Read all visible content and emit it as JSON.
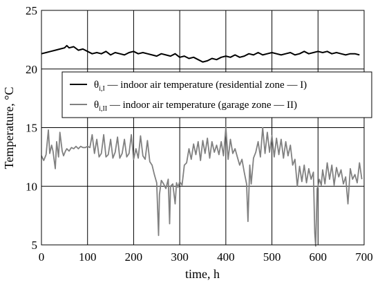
{
  "chart_data": {
    "type": "line",
    "xlabel": "time, h",
    "ylabel": "Temperature, °C",
    "xlim": [
      0,
      700
    ],
    "ylim": [
      5,
      25
    ],
    "xticks": [
      "0",
      "100",
      "200",
      "300",
      "400",
      "500",
      "600",
      "700"
    ],
    "yticks": [
      "5",
      "10",
      "15",
      "20",
      "25"
    ],
    "grid": true,
    "legend_position": "upper-middle",
    "series": [
      {
        "name": "indoor air temperature (residential zone — I)",
        "symbol": "θ",
        "subscript": "i,I",
        "legend_text": " — indoor air temperature (residential zone — I)",
        "color": "#000000",
        "x": [
          0,
          10,
          20,
          30,
          40,
          50,
          55,
          60,
          70,
          80,
          90,
          100,
          110,
          120,
          130,
          140,
          150,
          160,
          170,
          180,
          190,
          200,
          210,
          220,
          230,
          240,
          250,
          260,
          270,
          280,
          290,
          300,
          310,
          320,
          330,
          340,
          350,
          360,
          370,
          380,
          390,
          400,
          410,
          420,
          430,
          440,
          450,
          460,
          470,
          480,
          490,
          500,
          510,
          520,
          530,
          540,
          550,
          560,
          570,
          580,
          590,
          600,
          610,
          620,
          630,
          640,
          650,
          660,
          670,
          680,
          690
        ],
        "y": [
          21.3,
          21.4,
          21.5,
          21.6,
          21.7,
          21.8,
          22.0,
          21.8,
          21.9,
          21.6,
          21.7,
          21.5,
          21.3,
          21.4,
          21.3,
          21.5,
          21.2,
          21.4,
          21.3,
          21.2,
          21.4,
          21.5,
          21.3,
          21.4,
          21.3,
          21.2,
          21.1,
          21.3,
          21.2,
          21.1,
          21.3,
          21.0,
          21.1,
          20.9,
          21.0,
          20.8,
          20.6,
          20.7,
          20.9,
          20.8,
          21.0,
          21.1,
          21.0,
          21.2,
          21.0,
          21.1,
          21.3,
          21.2,
          21.4,
          21.2,
          21.3,
          21.4,
          21.3,
          21.2,
          21.3,
          21.4,
          21.2,
          21.3,
          21.5,
          21.3,
          21.4,
          21.5,
          21.4,
          21.5,
          21.3,
          21.4,
          21.3,
          21.2,
          21.3,
          21.3,
          21.2
        ]
      },
      {
        "name": "indoor air temperature (garage zone — II)",
        "symbol": "θ",
        "subscript": "i,II",
        "legend_text": " — indoor air temperature (garage zone — II)",
        "color": "#808080",
        "x": [
          0,
          5,
          10,
          15,
          18,
          22,
          25,
          30,
          33,
          37,
          40,
          45,
          48,
          52,
          55,
          60,
          65,
          70,
          75,
          80,
          85,
          90,
          95,
          100,
          105,
          110,
          115,
          120,
          125,
          130,
          135,
          140,
          145,
          150,
          155,
          160,
          165,
          170,
          175,
          180,
          185,
          190,
          195,
          200,
          205,
          210,
          215,
          220,
          225,
          230,
          235,
          240,
          245,
          250,
          254,
          256,
          260,
          265,
          270,
          275,
          278,
          280,
          285,
          290,
          293,
          296,
          300,
          305,
          310,
          315,
          320,
          325,
          330,
          335,
          340,
          345,
          350,
          355,
          360,
          365,
          370,
          375,
          380,
          385,
          390,
          395,
          400,
          405,
          410,
          415,
          420,
          425,
          430,
          435,
          440,
          445,
          448,
          452,
          455,
          460,
          465,
          470,
          475,
          480,
          485,
          490,
          495,
          500,
          505,
          510,
          515,
          520,
          525,
          530,
          535,
          540,
          545,
          550,
          555,
          560,
          565,
          570,
          575,
          580,
          585,
          590,
          593,
          595,
          598,
          600,
          603,
          607,
          610,
          615,
          620,
          625,
          630,
          635,
          640,
          645,
          650,
          655,
          660,
          665,
          670,
          675,
          680,
          685,
          690,
          695
        ],
        "y": [
          12.6,
          12.2,
          12.7,
          14.8,
          12.8,
          13.5,
          13.0,
          11.5,
          13.8,
          12.5,
          14.6,
          13.0,
          12.6,
          13.0,
          13.2,
          13.0,
          13.3,
          13.2,
          13.4,
          13.2,
          13.4,
          13.3,
          13.3,
          13.4,
          13.3,
          14.4,
          12.8,
          14.0,
          12.5,
          12.8,
          14.4,
          12.5,
          12.7,
          14.0,
          12.4,
          12.9,
          14.2,
          12.4,
          12.8,
          14.0,
          12.5,
          12.8,
          14.4,
          12.3,
          13.2,
          12.4,
          14.3,
          12.6,
          12.3,
          13.9,
          12.1,
          11.8,
          11.0,
          10.3,
          5.8,
          9.3,
          10.5,
          10.2,
          9.8,
          10.6,
          6.8,
          10.0,
          10.2,
          8.5,
          10.3,
          9.9,
          10.4,
          10.1,
          11.8,
          12.0,
          13.2,
          12.3,
          13.6,
          12.7,
          13.8,
          12.2,
          13.9,
          12.8,
          14.1,
          12.4,
          13.8,
          12.9,
          13.5,
          12.7,
          13.8,
          12.6,
          15.0,
          12.3,
          14.0,
          12.8,
          13.2,
          12.5,
          11.8,
          12.3,
          11.2,
          10.2,
          7.0,
          11.8,
          10.2,
          12.4,
          12.9,
          13.8,
          12.5,
          15.0,
          12.8,
          14.6,
          12.9,
          14.3,
          12.5,
          14.1,
          12.7,
          14.0,
          12.4,
          13.8,
          12.6,
          13.5,
          11.8,
          12.3,
          10.0,
          11.7,
          10.4,
          11.8,
          10.3,
          11.5,
          10.6,
          11.2,
          6.0,
          4.9,
          9.8,
          10.0,
          10.6,
          10.1,
          11.4,
          10.2,
          12.0,
          10.6,
          11.8,
          10.1,
          11.6,
          10.8,
          11.4,
          10.2,
          10.8,
          8.5,
          11.5,
          10.6,
          11.0,
          10.3,
          12.0,
          10.6
        ]
      }
    ]
  }
}
